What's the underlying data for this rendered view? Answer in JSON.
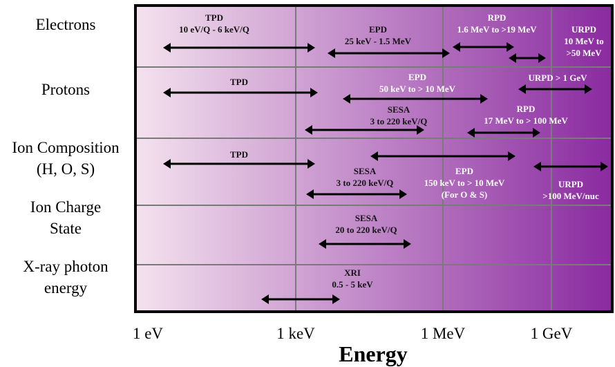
{
  "rows": [
    {
      "label_lines": [
        "Electrons"
      ]
    },
    {
      "label_lines": [
        "Protons"
      ]
    },
    {
      "label_lines": [
        "Ion Composition",
        "(H, O, S)"
      ]
    },
    {
      "label_lines": [
        "Ion Charge",
        "State"
      ]
    },
    {
      "label_lines": [
        "X-ray photon",
        "energy"
      ]
    }
  ],
  "axis": {
    "title": "Energy",
    "ticks": [
      "1 eV",
      "1 keV",
      "1 MeV",
      "1 GeV"
    ]
  },
  "colors": {
    "gradient_start": "#f4e2ee",
    "gradient_end": "#8a2aa0",
    "arrow": "#000000",
    "frame": "#000000",
    "grid": "#7a7a7a"
  },
  "instruments": {
    "electrons": [
      {
        "lines": [
          "TPD",
          "10 eV/Q - 6 keV/Q"
        ]
      },
      {
        "lines": [
          "EPD",
          "25 keV - 1.5 MeV"
        ]
      },
      {
        "lines": [
          "RPD",
          "1.6 MeV to  >19 MeV"
        ]
      },
      {
        "lines": [
          "URPD",
          "10 MeV to",
          ">50 MeV"
        ]
      }
    ],
    "protons": [
      {
        "lines": [
          "TPD"
        ]
      },
      {
        "lines": [
          "EPD",
          "50 keV to > 10 MeV"
        ]
      },
      {
        "lines": [
          "SESA",
          "3 to 220 keV/Q"
        ]
      },
      {
        "lines": [
          "URPD > 1 GeV"
        ]
      },
      {
        "lines": [
          "RPD",
          "17 MeV to > 100 MeV"
        ]
      }
    ],
    "ion_composition": [
      {
        "lines": [
          "TPD"
        ]
      },
      {
        "lines": [
          "SESA",
          "3 to 220 keV/Q"
        ]
      },
      {
        "lines": [
          "EPD",
          "150 keV to > 10 MeV",
          "(For O & S)"
        ]
      },
      {
        "lines": [
          "URPD",
          ">100 MeV/nuc"
        ]
      }
    ],
    "ion_charge": [
      {
        "lines": [
          "SESA",
          "20 to 220 keV/Q"
        ]
      }
    ],
    "xray": [
      {
        "lines": [
          "XRI",
          "0.5 - 5 keV"
        ]
      }
    ]
  }
}
